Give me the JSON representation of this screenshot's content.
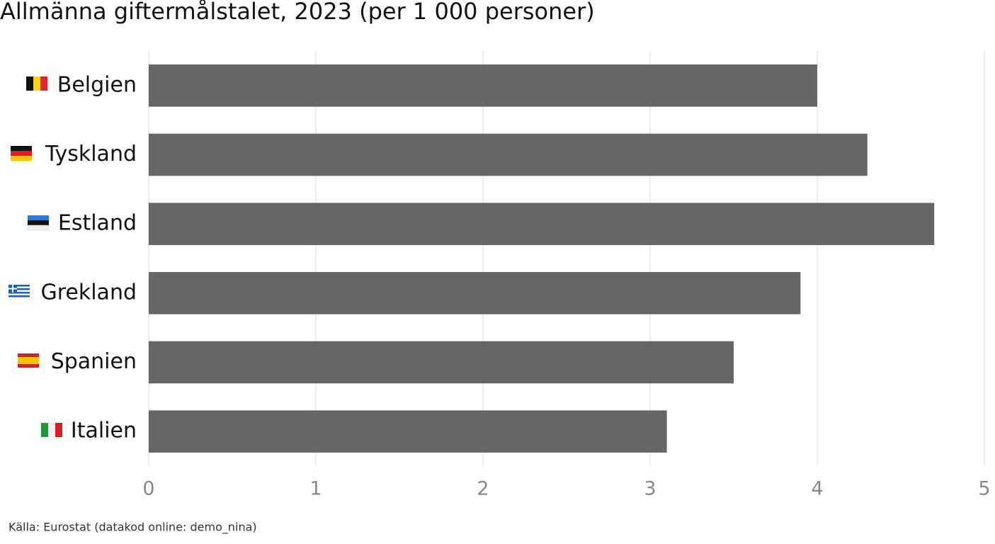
{
  "chart_data": {
    "type": "hbar",
    "title": "Allmänna giftermålstalet, 2023 (per 1 000 personer)",
    "categories": [
      "Belgien",
      "Tyskland",
      "Estland",
      "Grekland",
      "Spanien",
      "Italien"
    ],
    "values": [
      4.0,
      4.3,
      4.7,
      3.9,
      3.5,
      3.1
    ],
    "color": "#666666",
    "xlim": [
      0,
      5
    ],
    "xticks": [
      0,
      1,
      2,
      3,
      4,
      5
    ],
    "grid": true,
    "source": "Källa: Eurostat (datakod online: demo_nina)"
  }
}
